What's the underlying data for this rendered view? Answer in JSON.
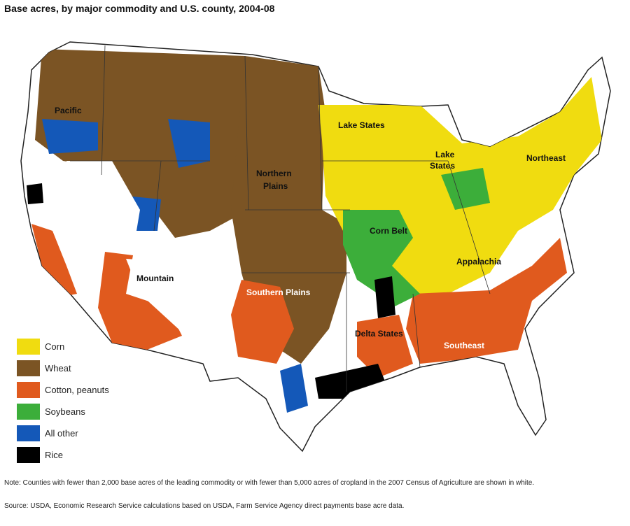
{
  "title": "Base acres, by major commodity and U.S. county, 2004-08",
  "legend": [
    {
      "label": "Corn",
      "color": "#f0dc10"
    },
    {
      "label": "Wheat",
      "color": "#7b5424"
    },
    {
      "label": "Cotton, peanuts",
      "color": "#e05a1e"
    },
    {
      "label": "Soybeans",
      "color": "#3cae3a"
    },
    {
      "label": "All other",
      "color": "#1458b8"
    },
    {
      "label": "Rice",
      "color": "#000000"
    }
  ],
  "regions": {
    "pacific": "Pacific",
    "lake_states_1": "Lake States",
    "lake_states_2a": "Lake",
    "lake_states_2b": "States",
    "northeast": "Northeast",
    "northern_plains_a": "Northern",
    "northern_plains_b": "Plains",
    "corn_belt": "Corn Belt",
    "appalachia": "Appalachia",
    "mountain": "Mountain",
    "southern_plains": "Southern Plains",
    "delta_states": "Delta States",
    "southeast": "Southeast"
  },
  "note": "Note: Counties with fewer than 2,000 base acres of the leading commodity or with fewer than 5,000 acres of cropland in the 2007 Census of Agriculture are shown in white.",
  "source": "Source: USDA, Economic Research Service calculations based on USDA, Farm Service Agency direct payments base acre data."
}
